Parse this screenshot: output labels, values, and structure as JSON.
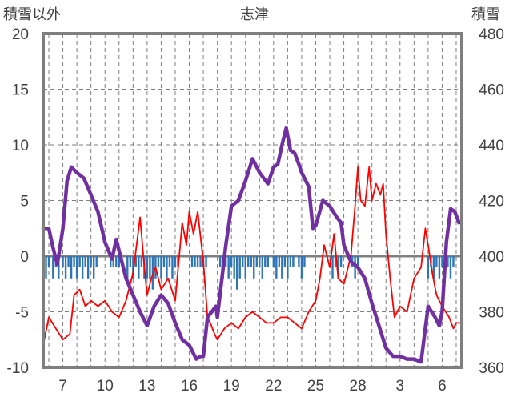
{
  "chart_data": {
    "type": "line",
    "title": "志津",
    "ylabel_left": "積雪以外",
    "ylabel_right": "積雪",
    "x_tick_labels": [
      "7",
      "10",
      "13",
      "16",
      "19",
      "22",
      "25",
      "28",
      "3",
      "6"
    ],
    "x_tick_days": [
      7,
      10,
      13,
      16,
      19,
      22,
      25,
      28,
      31,
      34
    ],
    "x_range": [
      5.6,
      35.4
    ],
    "ylim_left": [
      -10,
      20
    ],
    "yticks_left": [
      20,
      15,
      10,
      5,
      0,
      -5,
      -10
    ],
    "ylim_right": [
      360,
      480
    ],
    "yticks_right": [
      480,
      460,
      440,
      420,
      400,
      380,
      360
    ],
    "grid": true,
    "colors": {
      "temperature": "#ff0000",
      "snow_depth": "#7030a0",
      "precipitation": "#2e75b6",
      "frame": "#7f7f7f",
      "grid": "#7f7f7f",
      "zero_line": "#808080"
    },
    "series": [
      {
        "key": "temperature",
        "axis": "left",
        "x": [
          5.6,
          6.0,
          6.5,
          7.0,
          7.5,
          7.8,
          8.2,
          8.6,
          9.0,
          9.5,
          10.0,
          10.5,
          11.0,
          11.5,
          12.0,
          12.5,
          12.8,
          13.0,
          13.3,
          13.6,
          14.0,
          14.5,
          15.0,
          15.5,
          15.8,
          16.0,
          16.3,
          16.6,
          17.0,
          17.3,
          17.5,
          17.8,
          18.0,
          18.5,
          19.0,
          19.5,
          20.0,
          20.5,
          21.0,
          21.5,
          22.0,
          22.5,
          23.0,
          23.5,
          24.0,
          24.5,
          25.0,
          25.3,
          25.6,
          26.0,
          26.3,
          26.6,
          27.0,
          27.5,
          27.8,
          28.0,
          28.2,
          28.5,
          28.8,
          29.0,
          29.3,
          29.6,
          29.8,
          30.0,
          30.3,
          30.6,
          31.0,
          31.5,
          32.0,
          32.5,
          32.8,
          33.0,
          33.3,
          33.6,
          34.0,
          34.5,
          34.8,
          35.0,
          35.3
        ],
        "values": [
          -8.0,
          -5.5,
          -6.5,
          -7.5,
          -7.0,
          -3.5,
          -3.0,
          -4.5,
          -4.0,
          -4.5,
          -4.0,
          -5.0,
          -5.5,
          -4.0,
          -1.5,
          3.5,
          -1.0,
          -3.5,
          -2.0,
          -1.0,
          -3.0,
          -2.0,
          -4.0,
          3.0,
          1.0,
          4.0,
          2.0,
          4.0,
          -0.5,
          -5.5,
          -6.0,
          -7.0,
          -7.5,
          -6.5,
          -6.0,
          -6.5,
          -5.5,
          -5.0,
          -5.5,
          -6.0,
          -6.0,
          -5.5,
          -5.5,
          -6.0,
          -6.5,
          -5.0,
          -4.0,
          -2.0,
          1.0,
          -1.0,
          2.0,
          -2.0,
          -2.5,
          0.0,
          4.5,
          8.0,
          5.0,
          4.5,
          8.0,
          5.0,
          6.5,
          5.5,
          6.5,
          2.0,
          -2.0,
          -5.5,
          -4.5,
          -5.0,
          -2.0,
          -1.0,
          2.5,
          1.0,
          -1.5,
          -3.5,
          -4.5,
          -5.5,
          -6.5,
          -6.0,
          -6.0
        ]
      },
      {
        "key": "snow_depth",
        "axis": "right",
        "x": [
          5.6,
          6.0,
          6.3,
          6.6,
          7.0,
          7.3,
          7.6,
          8.0,
          8.5,
          9.0,
          9.5,
          10.0,
          10.5,
          10.8,
          11.0,
          11.5,
          12.0,
          12.5,
          12.8,
          13.0,
          13.5,
          14.0,
          14.5,
          15.0,
          15.5,
          16.0,
          16.5,
          16.8,
          17.0,
          17.3,
          17.6,
          17.9,
          18.0,
          18.3,
          18.6,
          19.0,
          19.5,
          20.0,
          20.5,
          21.0,
          21.3,
          21.6,
          22.0,
          22.3,
          22.6,
          22.9,
          23.2,
          23.5,
          23.8,
          24.0,
          24.5,
          24.8,
          25.0,
          25.5,
          26.0,
          26.5,
          26.8,
          27.0,
          27.5,
          28.0,
          28.5,
          29.0,
          29.5,
          30.0,
          30.5,
          31.0,
          31.5,
          32.0,
          32.5,
          33.0,
          33.5,
          33.8,
          34.0,
          34.3,
          34.6,
          34.9,
          35.2
        ],
        "values": [
          410,
          410,
          403,
          397,
          410,
          427,
          432,
          430,
          428,
          422,
          416,
          405,
          399,
          406,
          402,
          392,
          386,
          380,
          377,
          375,
          382,
          386,
          383,
          376,
          370,
          368,
          363,
          364,
          364,
          378,
          380,
          382,
          378,
          391,
          404,
          418,
          420,
          427,
          435,
          430,
          428,
          426,
          432,
          433,
          440,
          446,
          438,
          437,
          433,
          430,
          425,
          410,
          411,
          420,
          418,
          414,
          412,
          404,
          398,
          396,
          392,
          383,
          375,
          367,
          364,
          364,
          363,
          363,
          362,
          382,
          378,
          375,
          380,
          405,
          417,
          416,
          412
        ]
      },
      {
        "key": "precipitation",
        "axis": "left",
        "type": "bar",
        "note": "negative bars hanging from zero",
        "x": [
          5.8,
          6.0,
          6.3,
          6.5,
          6.7,
          7.0,
          7.2,
          7.4,
          7.6,
          7.8,
          8.0,
          8.2,
          8.4,
          8.6,
          8.8,
          9.0,
          9.2,
          9.4,
          10.4,
          10.6,
          10.8,
          11.0,
          11.6,
          11.8,
          12.0,
          12.2,
          12.4,
          12.6,
          12.8,
          13.0,
          13.2,
          13.4,
          13.6,
          13.8,
          14.0,
          14.2,
          14.4,
          14.6,
          14.8,
          15.0,
          15.2,
          16.2,
          16.4,
          16.6,
          16.8,
          17.0,
          17.2,
          18.2,
          18.4,
          18.6,
          18.8,
          19.0,
          19.2,
          19.4,
          19.6,
          19.8,
          20.0,
          20.2,
          20.4,
          20.6,
          20.8,
          21.0,
          21.2,
          21.4,
          21.6,
          22.0,
          22.2,
          22.4,
          22.6,
          22.8,
          23.0,
          23.2,
          23.4,
          23.8,
          24.0,
          24.2,
          26.2,
          26.4,
          26.6,
          26.8,
          27.6,
          27.8,
          28.0,
          33.0,
          33.2,
          33.4,
          33.6,
          33.8,
          34.0,
          34.2,
          34.4,
          34.6,
          34.8
        ],
        "values": [
          -2.0,
          -1.0,
          -2.0,
          -1.0,
          -2.0,
          -1.0,
          -2.0,
          -1.0,
          -2.0,
          -1.0,
          -2.0,
          -1.0,
          -2.0,
          -1.0,
          -2.0,
          -1.0,
          -2.0,
          -1.0,
          -1.0,
          -1.0,
          -1.0,
          -1.0,
          -2.0,
          -1.0,
          -2.0,
          -1.0,
          -2.0,
          -1.0,
          -2.0,
          -2.0,
          -2.0,
          -3.0,
          -2.0,
          -1.0,
          -2.0,
          -1.0,
          -2.0,
          -1.0,
          -2.0,
          -1.0,
          -1.0,
          -1.0,
          -1.0,
          -1.0,
          -1.0,
          -1.0,
          -1.0,
          -1.0,
          -2.0,
          -1.0,
          -2.0,
          -1.0,
          -2.0,
          -3.0,
          -2.0,
          -1.0,
          -2.0,
          -1.0,
          -1.0,
          -2.0,
          -1.0,
          -1.0,
          -2.0,
          -1.0,
          -1.0,
          -1.0,
          -2.0,
          -1.0,
          -2.0,
          -1.0,
          -2.0,
          -1.0,
          -1.0,
          -1.0,
          -2.0,
          -1.0,
          -2.0,
          -1.0,
          -2.0,
          -1.0,
          -1.0,
          -2.0,
          -1.0,
          -2.0,
          -1.0,
          -2.0,
          -1.0,
          -2.0,
          -1.0,
          -2.0,
          -1.0,
          -2.0,
          -1.0
        ]
      }
    ]
  }
}
